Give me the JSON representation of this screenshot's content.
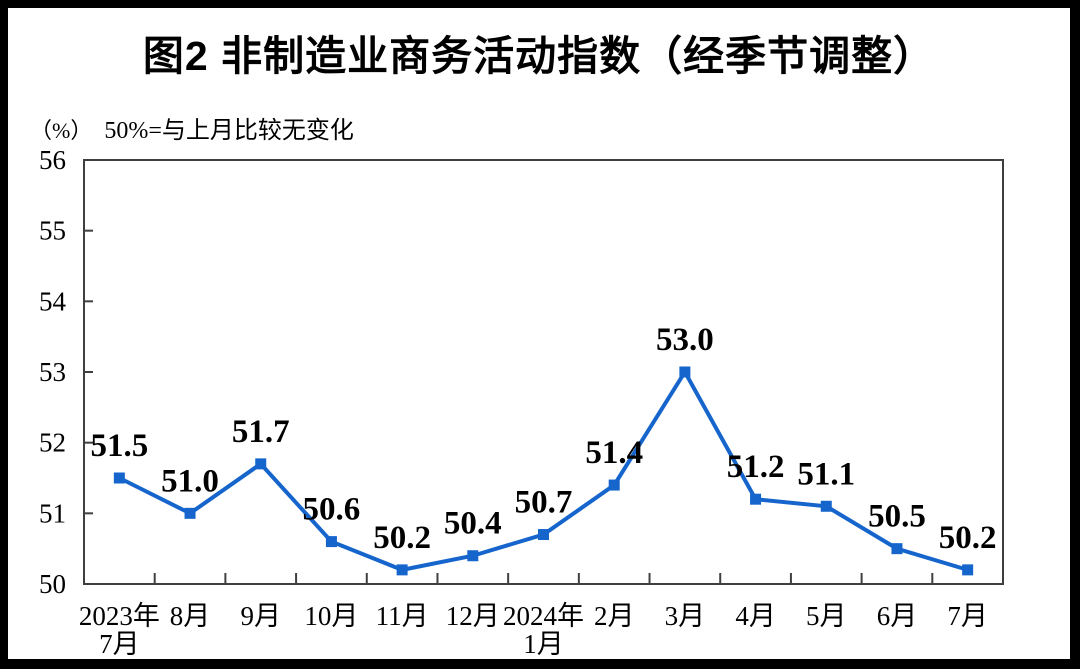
{
  "page": {
    "title": "图2 非制造业商务活动指数（经季节调整）",
    "unit_label": "（%）",
    "note": "50%=与上月比较无变化"
  },
  "chart_data": {
    "type": "line",
    "title": "图2 非制造业商务活动指数（经季节调整）",
    "unit_label": "（%）",
    "note": "50%=与上月比较无变化",
    "series": [
      {
        "name": "非制造业商务活动指数",
        "values": [
          51.5,
          51.0,
          51.7,
          50.6,
          50.2,
          50.4,
          50.7,
          51.4,
          53.0,
          51.2,
          51.1,
          50.5,
          50.2
        ]
      }
    ],
    "data_labels": [
      "51.5",
      "51.0",
      "51.7",
      "50.6",
      "50.2",
      "50.4",
      "50.7",
      "51.4",
      "53.0",
      "51.2",
      "51.1",
      "50.5",
      "50.2"
    ],
    "categories": [
      "2023年7月",
      "8月",
      "9月",
      "10月",
      "11月",
      "12月",
      "2024年1月",
      "2月",
      "3月",
      "4月",
      "5月",
      "6月",
      "7月"
    ],
    "category_tick_lines": [
      [
        "2023年",
        "7月"
      ],
      [
        "8月"
      ],
      [
        "9月"
      ],
      [
        "10月"
      ],
      [
        "11月"
      ],
      [
        "12月"
      ],
      [
        "2024年",
        "1月"
      ],
      [
        "2月"
      ],
      [
        "3月"
      ],
      [
        "4月"
      ],
      [
        "5月"
      ],
      [
        "6月"
      ],
      [
        "7月"
      ]
    ],
    "ylim": [
      50,
      56
    ],
    "yticks": [
      50,
      51,
      52,
      53,
      54,
      55,
      56
    ],
    "grid": false,
    "legend_position": "none",
    "line_color": "#1565CC",
    "marker": "square",
    "axis_color": "#3F3F3F",
    "text_color": "#000000",
    "background": "#FFFFFF"
  }
}
